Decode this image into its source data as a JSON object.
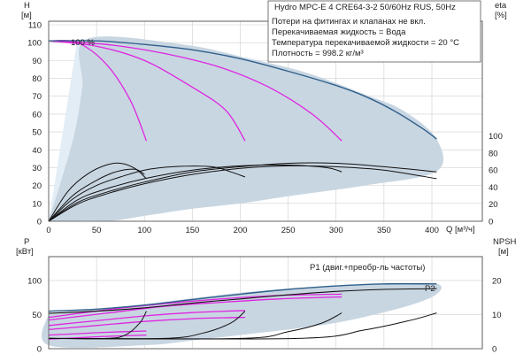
{
  "colors": {
    "envelope": "#c8d6e2",
    "light_region": "#e3edf5",
    "max_curve": "#2f5f8a",
    "reduced_speed": "#e024e0",
    "efficiency": "#111111",
    "p1": "#2f5f8a",
    "p2": "#111111"
  },
  "info_box": {
    "title": "Hydro MPC-E 4 CRE64-3-2 50/60Hz RUS, 50Hz",
    "lines": [
      "Потери на фитингах и клапанах не вкл.",
      "Перекачиваемая жидкость = Вода",
      "Температура перекачиваемой жидкости = 20 °C",
      "Плотность = 998.2 кг/м³"
    ]
  },
  "chart_data": [
    {
      "type": "line",
      "name": "head",
      "ylabel_symbol": "H",
      "ylabel_unit": "[м]",
      "y2label_symbol": "eta",
      "y2label_unit": "[%]",
      "xlabel": "Q [м³/ч]",
      "xlim": [
        0,
        430
      ],
      "ylim": [
        0,
        110
      ],
      "y2lim": [
        0,
        100
      ],
      "y2_axis_start": 0,
      "y2_axis_end": 100,
      "xticks": [
        0,
        50,
        100,
        150,
        200,
        250,
        300,
        350,
        400
      ],
      "yticks": [
        0,
        10,
        20,
        30,
        40,
        50,
        60,
        70,
        80,
        90,
        100,
        110
      ],
      "y2ticks": [
        0,
        20,
        40,
        60,
        80,
        100
      ],
      "grid": true,
      "annotation": "100 %",
      "envelope": [
        [
          0,
          0
        ],
        [
          25,
          45
        ],
        [
          35,
          75
        ],
        [
          40,
          102
        ],
        [
          140,
          99
        ],
        [
          210,
          91
        ],
        [
          270,
          83
        ],
        [
          330,
          71
        ],
        [
          370,
          62
        ],
        [
          405,
          46
        ],
        [
          405,
          28
        ],
        [
          330,
          20
        ],
        [
          250,
          14
        ],
        [
          200,
          10
        ],
        [
          150,
          7
        ],
        [
          100,
          3
        ],
        [
          60,
          0
        ]
      ],
      "light_region": [
        [
          30,
          102
        ],
        [
          68,
          102
        ],
        [
          75,
          88
        ],
        [
          70,
          50
        ],
        [
          52,
          30
        ],
        [
          0,
          0
        ]
      ],
      "max_speed_curve": [
        [
          0,
          101
        ],
        [
          50,
          101
        ],
        [
          100,
          99
        ],
        [
          150,
          96
        ],
        [
          200,
          91
        ],
        [
          250,
          84
        ],
        [
          300,
          76
        ],
        [
          330,
          70
        ],
        [
          360,
          62
        ],
        [
          390,
          52
        ],
        [
          405,
          46
        ]
      ],
      "reduced_speed_curves": [
        [
          [
            0,
            101
          ],
          [
            30,
            100
          ],
          [
            60,
            88
          ],
          [
            85,
            68
          ],
          [
            102,
            45
          ]
        ],
        [
          [
            0,
            101
          ],
          [
            50,
            98
          ],
          [
            100,
            90
          ],
          [
            150,
            75
          ],
          [
            185,
            62
          ],
          [
            205,
            45
          ]
        ],
        [
          [
            0,
            101
          ],
          [
            60,
            99
          ],
          [
            120,
            94
          ],
          [
            180,
            86
          ],
          [
            230,
            75
          ],
          [
            275,
            60
          ],
          [
            306,
            45
          ]
        ]
      ],
      "efficiency_curves": [
        [
          [
            0,
            0
          ],
          [
            20,
            35
          ],
          [
            40,
            55
          ],
          [
            60,
            66
          ],
          [
            75,
            68
          ],
          [
            90,
            62
          ],
          [
            102,
            50
          ]
        ],
        [
          [
            0,
            0
          ],
          [
            25,
            30
          ],
          [
            50,
            48
          ],
          [
            70,
            58
          ],
          [
            90,
            61
          ],
          [
            100,
            55
          ]
        ],
        [
          [
            0,
            0
          ],
          [
            25,
            26
          ],
          [
            50,
            42
          ],
          [
            75,
            52
          ],
          [
            100,
            60
          ],
          [
            130,
            64
          ],
          [
            170,
            64
          ],
          [
            190,
            58
          ],
          [
            205,
            52
          ]
        ],
        [
          [
            0,
            0
          ],
          [
            30,
            25
          ],
          [
            60,
            38
          ],
          [
            100,
            50
          ],
          [
            150,
            60
          ],
          [
            200,
            65
          ],
          [
            250,
            66
          ],
          [
            290,
            63
          ],
          [
            306,
            58
          ]
        ],
        [
          [
            0,
            0
          ],
          [
            30,
            22
          ],
          [
            60,
            34
          ],
          [
            100,
            46
          ],
          [
            150,
            58
          ],
          [
            200,
            64
          ],
          [
            250,
            68
          ],
          [
            300,
            68
          ],
          [
            350,
            64
          ],
          [
            405,
            58
          ]
        ],
        [
          [
            0,
            0
          ],
          [
            30,
            20
          ],
          [
            60,
            32
          ],
          [
            100,
            44
          ],
          [
            150,
            55
          ],
          [
            200,
            62
          ],
          [
            250,
            65
          ],
          [
            300,
            64
          ],
          [
            350,
            60
          ],
          [
            405,
            50
          ]
        ]
      ]
    },
    {
      "type": "line",
      "name": "power_npsh",
      "ylabel_symbol": "P",
      "ylabel_unit": "[кВт]",
      "y2label_symbol": "NPSH",
      "y2label_unit": "[м]",
      "xlim": [
        0,
        430
      ],
      "ylim": [
        0,
        135
      ],
      "y2lim": [
        0,
        27
      ],
      "yticks": [
        0,
        50,
        100
      ],
      "y2ticks": [
        0,
        10,
        20
      ],
      "grid": true,
      "p1_label": "P1 (двиг.+преобр-ль частоты)",
      "p2_label": "P2",
      "envelope": [
        [
          0,
          52
        ],
        [
          50,
          58
        ],
        [
          100,
          65
        ],
        [
          150,
          74
        ],
        [
          200,
          82
        ],
        [
          250,
          88
        ],
        [
          300,
          92
        ],
        [
          350,
          95
        ],
        [
          405,
          95
        ],
        [
          405,
          80
        ],
        [
          380,
          65
        ],
        [
          340,
          50
        ],
        [
          300,
          38
        ],
        [
          250,
          28
        ],
        [
          200,
          20
        ],
        [
          150,
          12
        ],
        [
          100,
          5
        ],
        [
          0,
          5
        ]
      ],
      "p1_curve": [
        [
          0,
          55
        ],
        [
          50,
          58
        ],
        [
          100,
          64
        ],
        [
          150,
          72
        ],
        [
          200,
          80
        ],
        [
          250,
          87
        ],
        [
          300,
          92
        ],
        [
          350,
          95
        ],
        [
          405,
          95
        ]
      ],
      "p2_curve": [
        [
          0,
          52
        ],
        [
          50,
          55
        ],
        [
          100,
          60
        ],
        [
          150,
          67
        ],
        [
          200,
          73
        ],
        [
          250,
          79
        ],
        [
          300,
          84
        ],
        [
          350,
          87
        ],
        [
          405,
          88
        ]
      ],
      "reduced_p_curves": [
        [
          [
            0,
            14
          ],
          [
            30,
            16
          ],
          [
            60,
            18
          ],
          [
            102,
            20
          ]
        ],
        [
          [
            0,
            20
          ],
          [
            30,
            22
          ],
          [
            60,
            24
          ],
          [
            102,
            26
          ]
        ],
        [
          [
            0,
            28
          ],
          [
            50,
            34
          ],
          [
            100,
            40
          ],
          [
            150,
            44
          ],
          [
            205,
            46
          ]
        ],
        [
          [
            0,
            34
          ],
          [
            50,
            41
          ],
          [
            100,
            48
          ],
          [
            150,
            53
          ],
          [
            205,
            56
          ]
        ],
        [
          [
            0,
            42
          ],
          [
            60,
            52
          ],
          [
            120,
            62
          ],
          [
            180,
            68
          ],
          [
            240,
            73
          ],
          [
            306,
            76
          ]
        ],
        [
          [
            0,
            46
          ],
          [
            60,
            57
          ],
          [
            120,
            66
          ],
          [
            180,
            73
          ],
          [
            240,
            78
          ],
          [
            306,
            80
          ]
        ]
      ],
      "npsh_curves": [
        [
          [
            0,
            3
          ],
          [
            60,
            3
          ],
          [
            80,
            4
          ],
          [
            95,
            7.5
          ],
          [
            102,
            11
          ]
        ],
        [
          [
            0,
            3
          ],
          [
            120,
            3
          ],
          [
            160,
            4.5
          ],
          [
            190,
            7.5
          ],
          [
            205,
            11
          ]
        ],
        [
          [
            0,
            3
          ],
          [
            200,
            3
          ],
          [
            250,
            5
          ],
          [
            285,
            7.5
          ],
          [
            306,
            10.5
          ]
        ],
        [
          [
            0,
            3
          ],
          [
            260,
            3
          ],
          [
            330,
            5.5
          ],
          [
            380,
            8.5
          ],
          [
            405,
            10.5
          ]
        ]
      ]
    }
  ]
}
